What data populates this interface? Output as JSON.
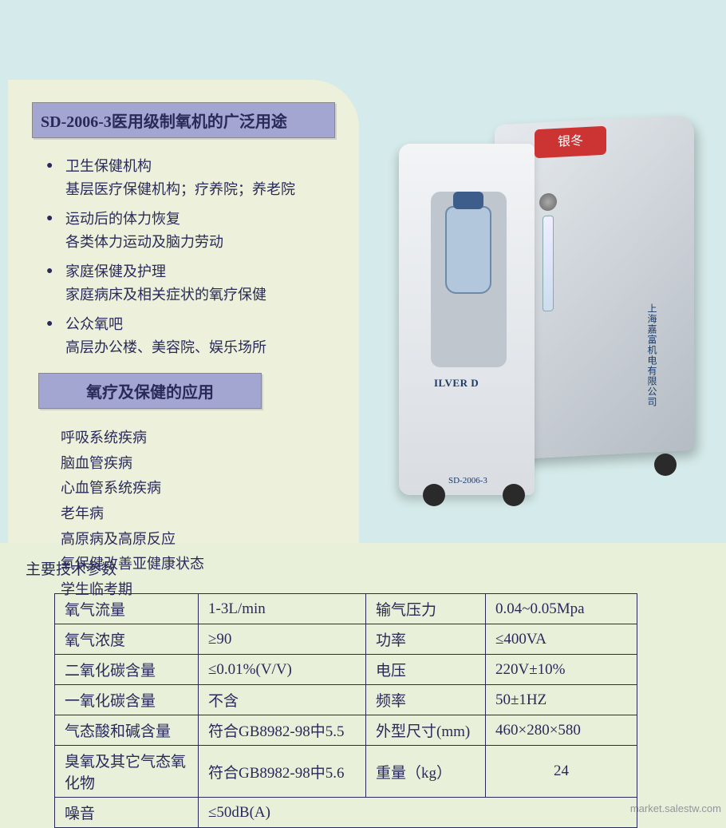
{
  "banners": {
    "main": "SD-2006-3医用级制氧机的广泛用途",
    "sub": "氧疗及保健的应用"
  },
  "uses": [
    {
      "title": "卫生保健机构",
      "sub": "基层医疗保健机构；疗养院；养老院"
    },
    {
      "title": "运动后的体力恢复",
      "sub": "各类体力运动及脑力劳动"
    },
    {
      "title": "家庭保健及护理",
      "sub": "家庭病床及相关症状的氧疗保健"
    },
    {
      "title": "公众氧吧",
      "sub": "高层办公楼、美容院、娱乐场所"
    }
  ],
  "applications": [
    "呼吸系统疾病",
    "脑血管疾病",
    "心血管系统疾病",
    "老年病",
    "高原病及高原反应",
    "氧保健改善亚健康状态",
    "学生临考期"
  ],
  "product": {
    "top_badge": "银冬",
    "brand": "ILVER D",
    "model": "SD-2006-3",
    "side_company": "上海嘉富机电有限公司"
  },
  "specs_title": "主要技术参数",
  "specs": [
    {
      "k1": "氧气流量",
      "v1": "1-3L/min",
      "k2": "输气压力",
      "v2": "0.04~0.05Mpa"
    },
    {
      "k1": "氧气浓度",
      "v1": "≥90",
      "k2": "功率",
      "v2": "≤400VA"
    },
    {
      "k1": "二氧化碳含量",
      "v1": "≤0.01%(V/V)",
      "k2": "电压",
      "v2": "220V±10%"
    },
    {
      "k1": "一氧化碳含量",
      "v1": "不含",
      "k2": "频率",
      "v2": "50±1HZ"
    },
    {
      "k1": "气态酸和碱含量",
      "v1": "符合GB8982-98中5.5",
      "k2": "外型尺寸(mm)",
      "v2": "460×280×580"
    },
    {
      "k1": "臭氧及其它气态氧化物",
      "v1": "符合GB8982-98中5.6",
      "k2": "重量（kg）",
      "v2": "24"
    },
    {
      "k1": "噪音",
      "v1": "≤50dB(A)",
      "k2": "",
      "v2": ""
    }
  ],
  "watermark": "market.salestw.com",
  "colors": {
    "page_bg": "#e8f0da",
    "top_bg": "#d5eaea",
    "panel_bg": "#edf0db",
    "banner_bg": "#a3a6d0",
    "text": "#2a2a5a",
    "border": "#2a2a5a"
  }
}
